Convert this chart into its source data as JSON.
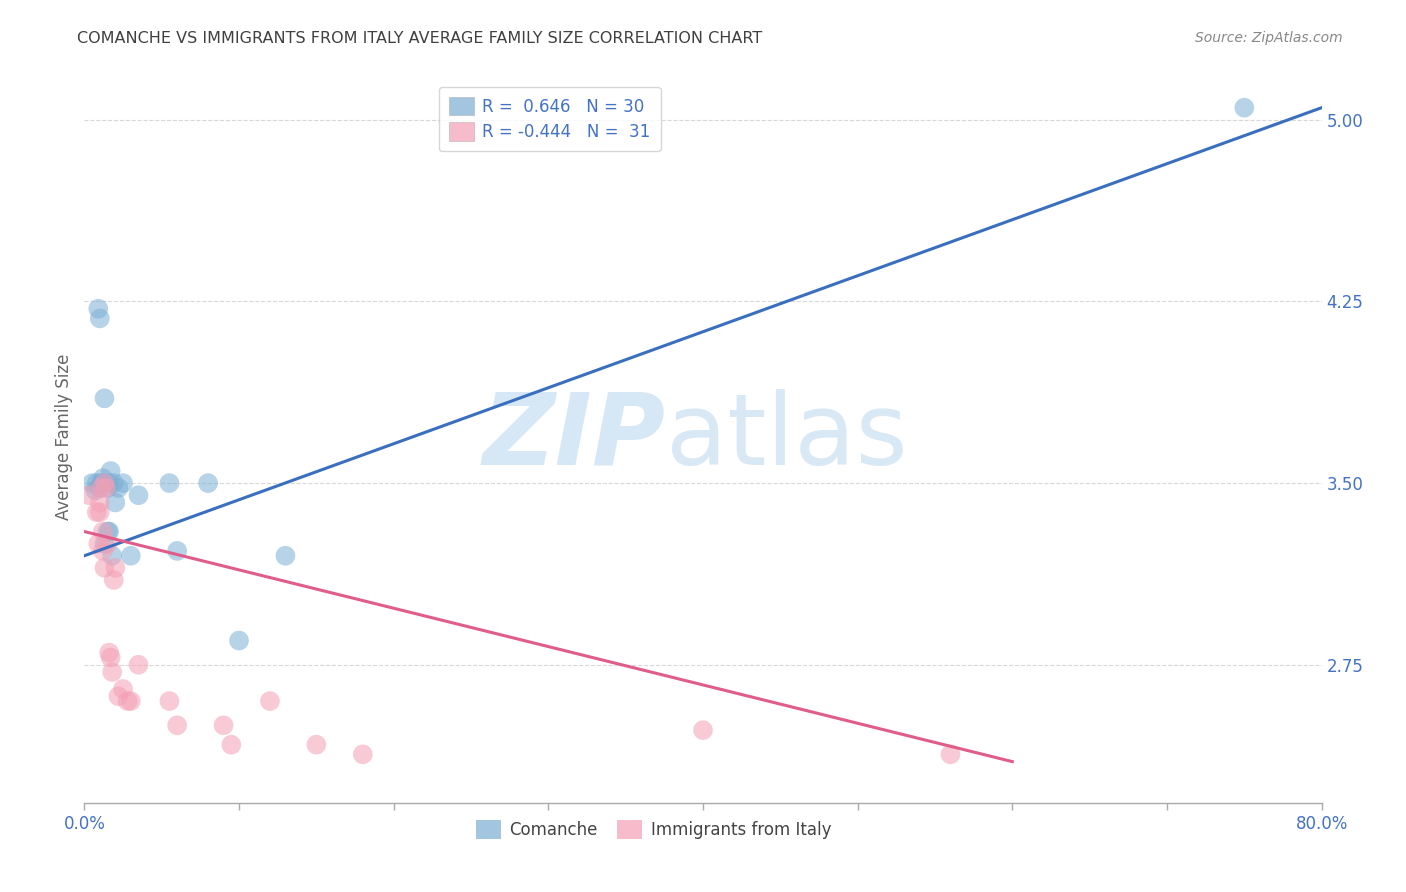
{
  "title": "COMANCHE VS IMMIGRANTS FROM ITALY AVERAGE FAMILY SIZE CORRELATION CHART",
  "source": "Source: ZipAtlas.com",
  "ylabel": "Average Family Size",
  "ytick_values": [
    2.75,
    3.5,
    4.25,
    5.0
  ],
  "ytick_labels": [
    "2.75",
    "3.50",
    "4.25",
    "5.00"
  ],
  "xlim": [
    0.0,
    0.8
  ],
  "ylim": [
    2.18,
    5.2
  ],
  "blue_R": 0.646,
  "blue_N": 30,
  "pink_R": -0.444,
  "pink_N": 31,
  "blue_color": "#7BAFD4",
  "pink_color": "#F4A0B5",
  "blue_line_color": "#3A6FBF",
  "pink_line_color": "#E05C8A",
  "axis_color": "#4472C4",
  "title_color": "#404040",
  "source_color": "#888888",
  "grid_color": "#D8D8D8",
  "blue_x": [
    0.005,
    0.007,
    0.008,
    0.009,
    0.01,
    0.01,
    0.011,
    0.012,
    0.012,
    0.013,
    0.013,
    0.014,
    0.015,
    0.015,
    0.016,
    0.016,
    0.017,
    0.018,
    0.019,
    0.02,
    0.022,
    0.025,
    0.03,
    0.035,
    0.055,
    0.06,
    0.08,
    0.1,
    0.13,
    0.75
  ],
  "blue_y": [
    3.5,
    3.47,
    3.5,
    4.22,
    4.18,
    3.48,
    3.5,
    3.5,
    3.52,
    3.85,
    3.25,
    3.5,
    3.48,
    3.3,
    3.5,
    3.3,
    3.55,
    3.2,
    3.5,
    3.42,
    3.48,
    3.5,
    3.2,
    3.45,
    3.5,
    3.22,
    3.5,
    2.85,
    3.2,
    5.05
  ],
  "pink_x": [
    0.003,
    0.008,
    0.009,
    0.01,
    0.01,
    0.011,
    0.012,
    0.012,
    0.013,
    0.013,
    0.014,
    0.015,
    0.016,
    0.017,
    0.018,
    0.019,
    0.02,
    0.022,
    0.025,
    0.028,
    0.03,
    0.035,
    0.055,
    0.06,
    0.09,
    0.095,
    0.12,
    0.15,
    0.18,
    0.4,
    0.56
  ],
  "pink_y": [
    3.45,
    3.38,
    3.25,
    3.42,
    3.38,
    3.48,
    3.3,
    3.22,
    3.5,
    3.15,
    3.48,
    3.25,
    2.8,
    2.78,
    2.72,
    3.1,
    3.15,
    2.62,
    2.65,
    2.6,
    2.6,
    2.75,
    2.6,
    2.5,
    2.5,
    2.42,
    2.6,
    2.42,
    2.38,
    2.48,
    2.38
  ],
  "blue_line_x0": 0.0,
  "blue_line_y0": 3.2,
  "blue_line_x1": 0.8,
  "blue_line_y1": 5.05,
  "pink_line_x0": 0.0,
  "pink_line_y0": 3.3,
  "pink_line_x1": 0.6,
  "pink_line_y1": 2.35
}
